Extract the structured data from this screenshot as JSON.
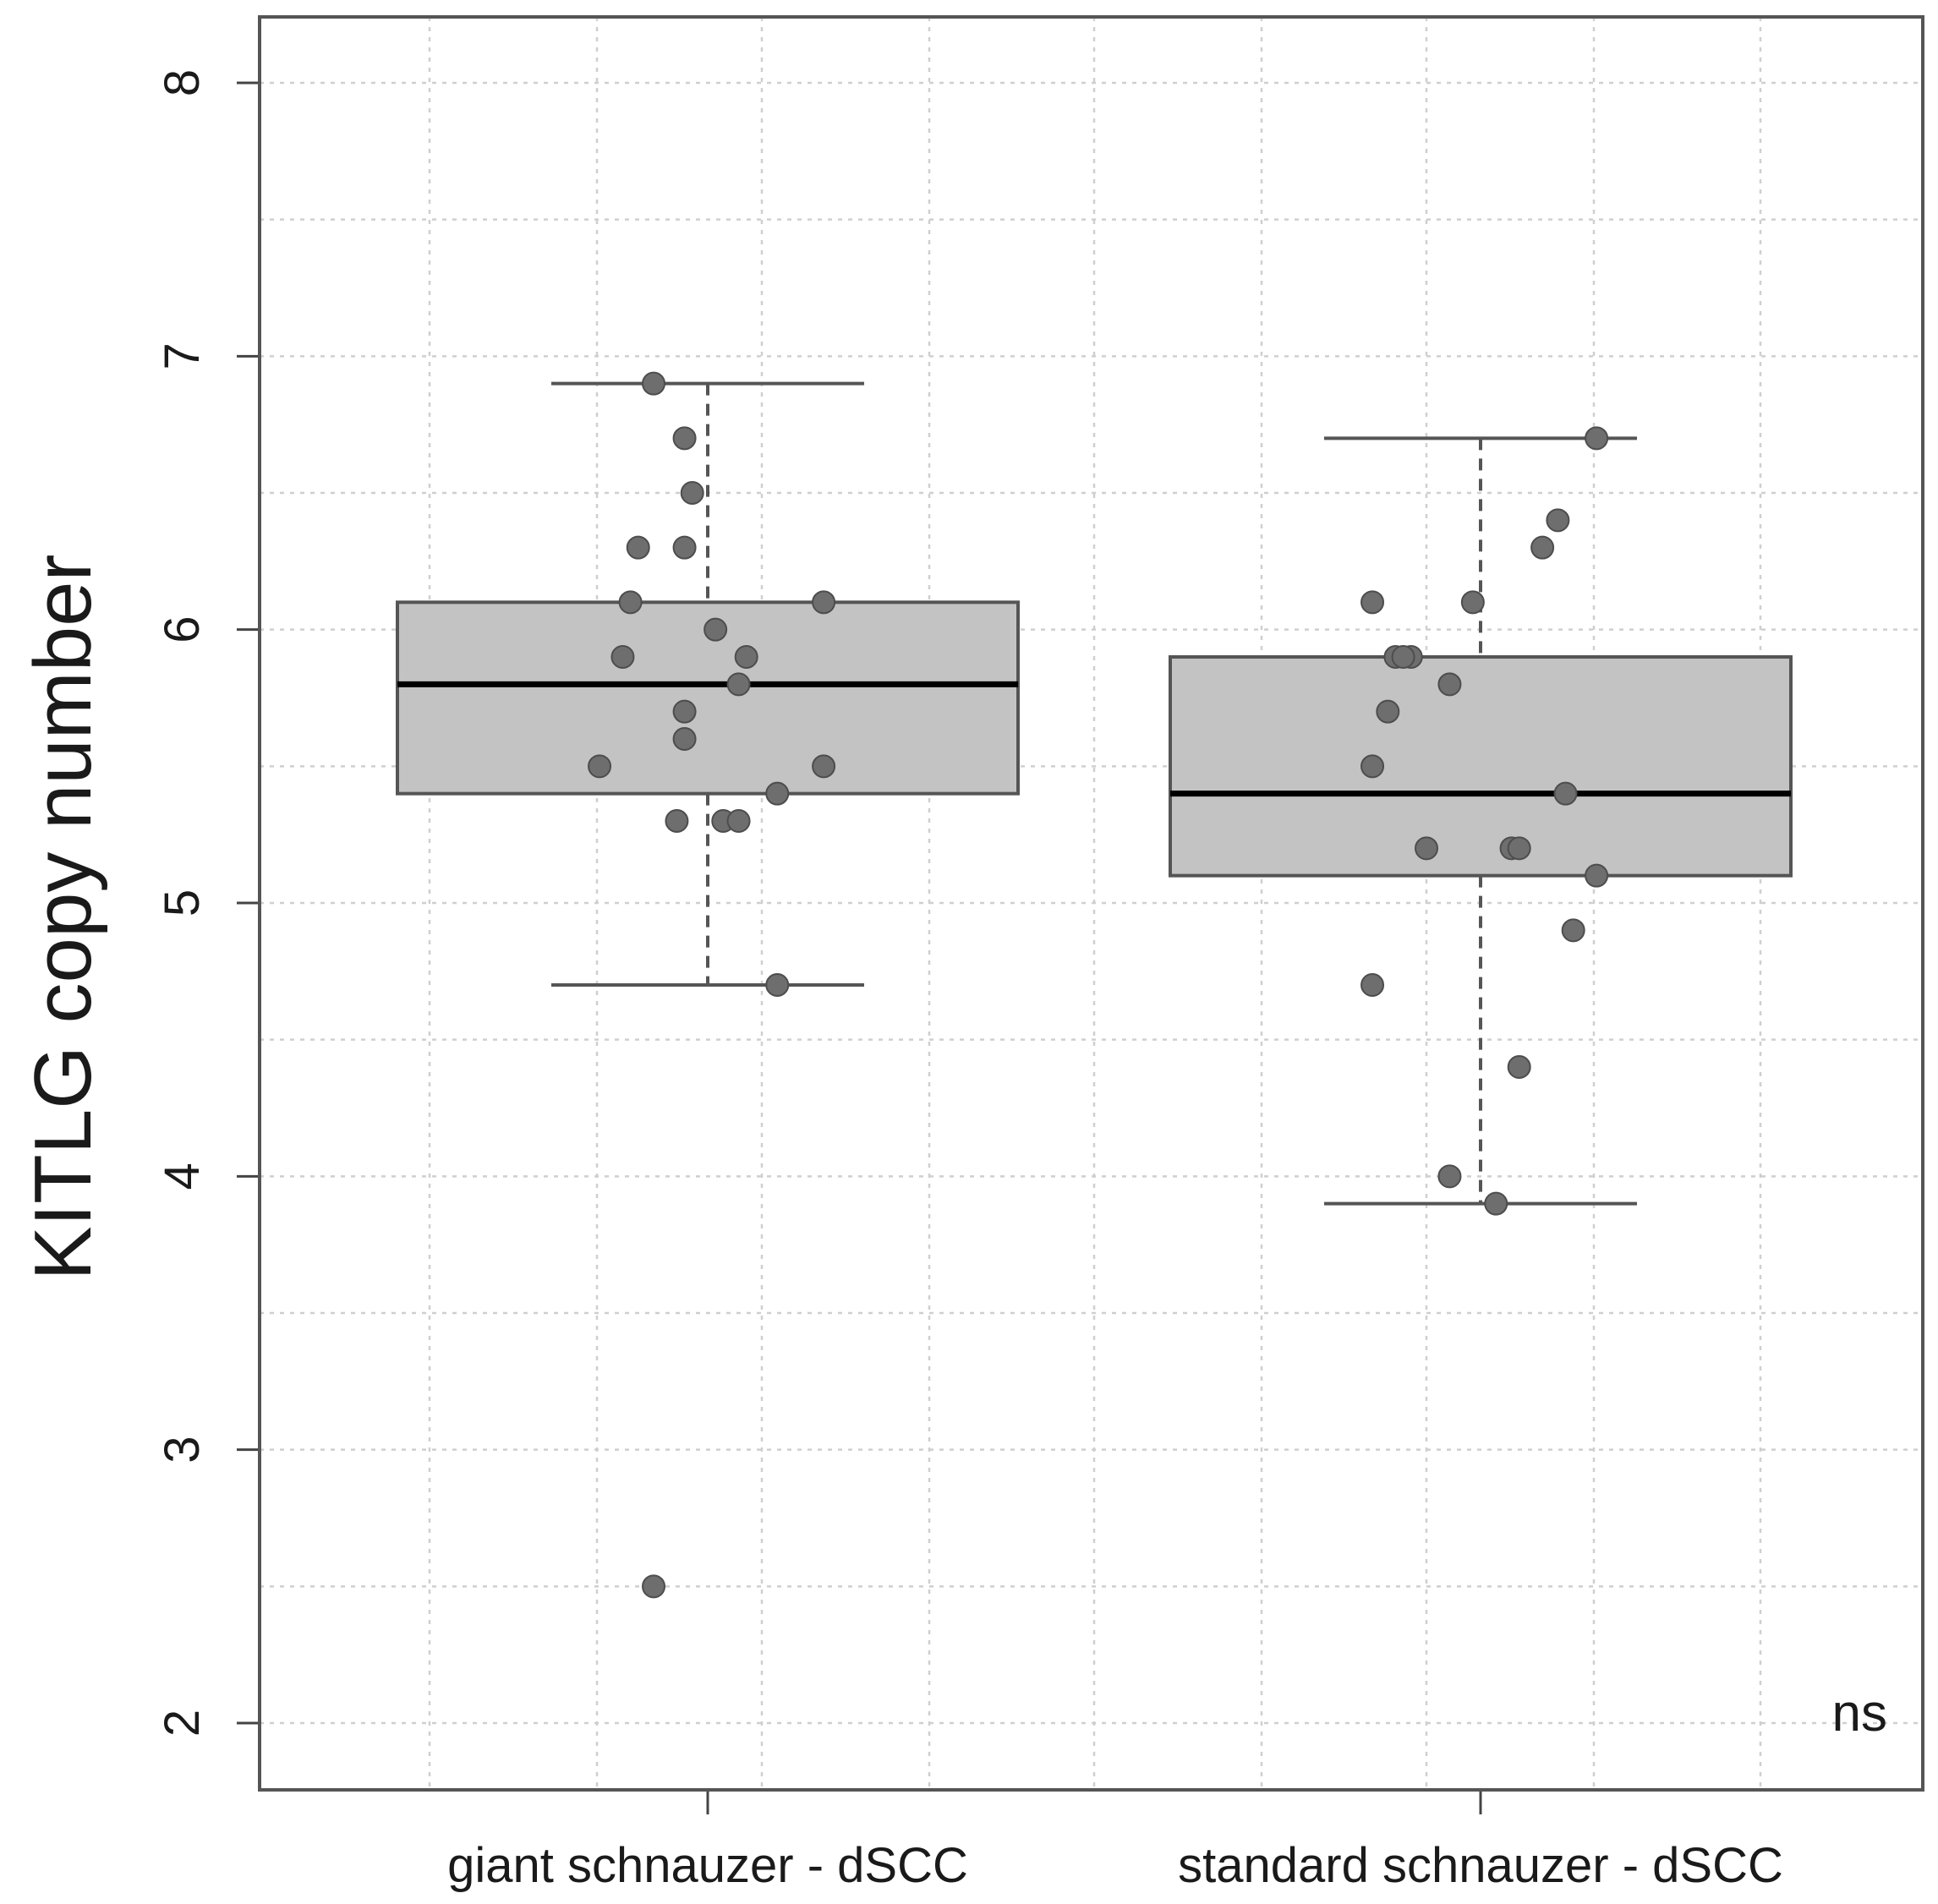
{
  "chart_data": {
    "type": "box",
    "title": "",
    "xlabel": "",
    "ylabel": "KITLG copy number",
    "ylim": [
      1.9,
      8.2
    ],
    "yticks": [
      2,
      3,
      4,
      5,
      6,
      7,
      8
    ],
    "grid": true,
    "annotation": "ns",
    "categories": [
      "giant schnauzer - dSCC",
      "standard schnauzer - dSCC"
    ],
    "boxes": [
      {
        "name": "giant schnauzer - dSCC",
        "whisker_low": 4.7,
        "q1": 5.4,
        "median": 5.8,
        "q3": 6.1,
        "whisker_high": 6.9,
        "points": [
          6.9,
          6.7,
          6.5,
          6.3,
          6.3,
          6.1,
          6.1,
          6.0,
          5.9,
          5.9,
          5.8,
          5.7,
          5.6,
          5.5,
          5.5,
          5.4,
          5.3,
          5.3,
          5.3,
          4.7,
          2.5
        ],
        "jitter": [
          -0.07,
          -0.03,
          -0.02,
          -0.09,
          -0.03,
          -0.1,
          0.15,
          0.01,
          -0.11,
          0.05,
          0.04,
          -0.03,
          -0.03,
          -0.14,
          0.15,
          0.09,
          -0.04,
          0.02,
          0.04,
          0.09,
          -0.07
        ]
      },
      {
        "name": "standard schnauzer - dSCC",
        "whisker_low": 3.9,
        "q1": 5.1,
        "median": 5.4,
        "q3": 5.9,
        "whisker_high": 6.7,
        "points": [
          6.7,
          6.4,
          6.3,
          6.1,
          6.1,
          5.9,
          5.9,
          5.9,
          5.8,
          5.7,
          5.5,
          5.4,
          5.2,
          5.2,
          5.2,
          5.1,
          4.9,
          4.7,
          4.4,
          4.0,
          3.9
        ],
        "jitter": [
          0.15,
          0.1,
          0.08,
          -0.14,
          -0.01,
          -0.09,
          -0.11,
          -0.1,
          -0.04,
          -0.12,
          -0.14,
          0.11,
          -0.07,
          0.04,
          0.05,
          0.15,
          0.12,
          -0.14,
          0.05,
          -0.04,
          0.02
        ]
      }
    ]
  }
}
